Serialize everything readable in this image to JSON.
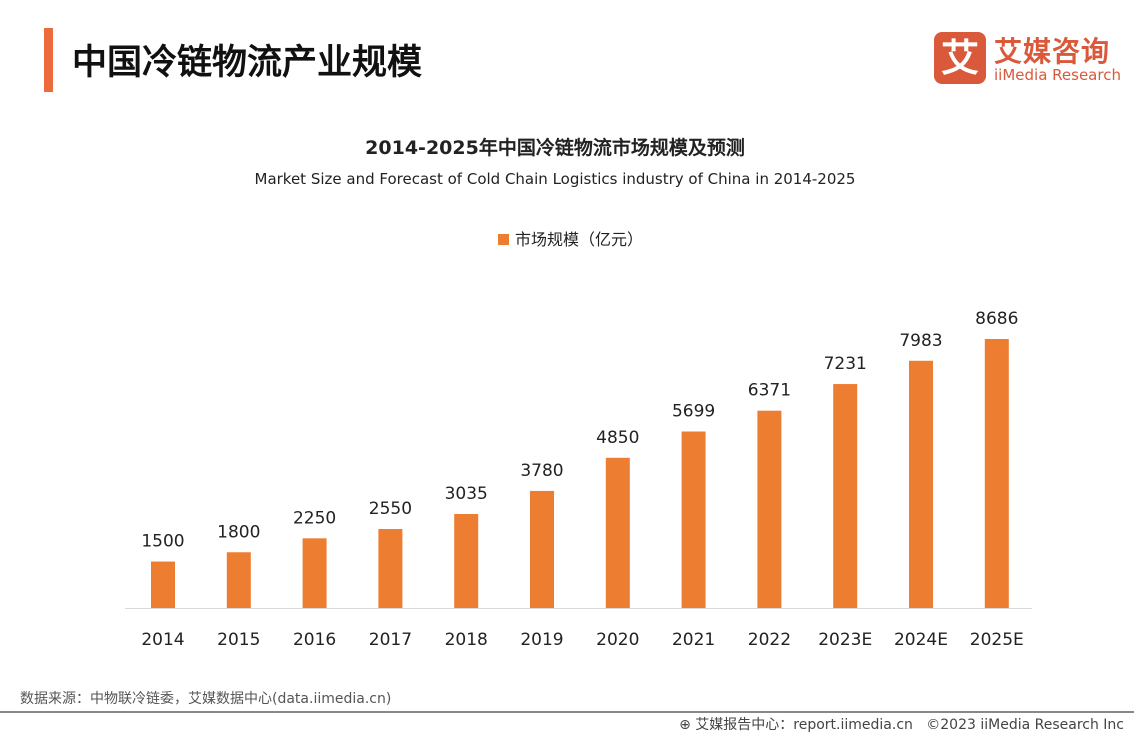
{
  "header": {
    "title": "中国冷链物流产业规模",
    "logo_cn": "艾媒咨询",
    "logo_en": "iiMedia Research",
    "logo_mark": "艾"
  },
  "chart_data": {
    "type": "bar",
    "title": "2014-2025年中国冷链物流市场规模及预测",
    "subtitle": "Market Size and Forecast of Cold Chain Logistics industry of China in 2014-2025",
    "legend": "市场规模（亿元）",
    "legend_position": "top",
    "categories": [
      "2014",
      "2015",
      "2016",
      "2017",
      "2018",
      "2019",
      "2020",
      "2021",
      "2022",
      "2023E",
      "2024E",
      "2025E"
    ],
    "values": [
      1500,
      1800,
      2250,
      2550,
      3035,
      3780,
      4850,
      5699,
      6371,
      7231,
      7983,
      8686
    ],
    "color": "#ed7d31",
    "grid": false
  },
  "footer": {
    "source": "数据来源：中物联冷链委，艾媒数据中心(data.iimedia.cn)",
    "report": "艾媒报告中心：report.iimedia.cn",
    "copyright": "©2023  iiMedia Research  Inc"
  }
}
